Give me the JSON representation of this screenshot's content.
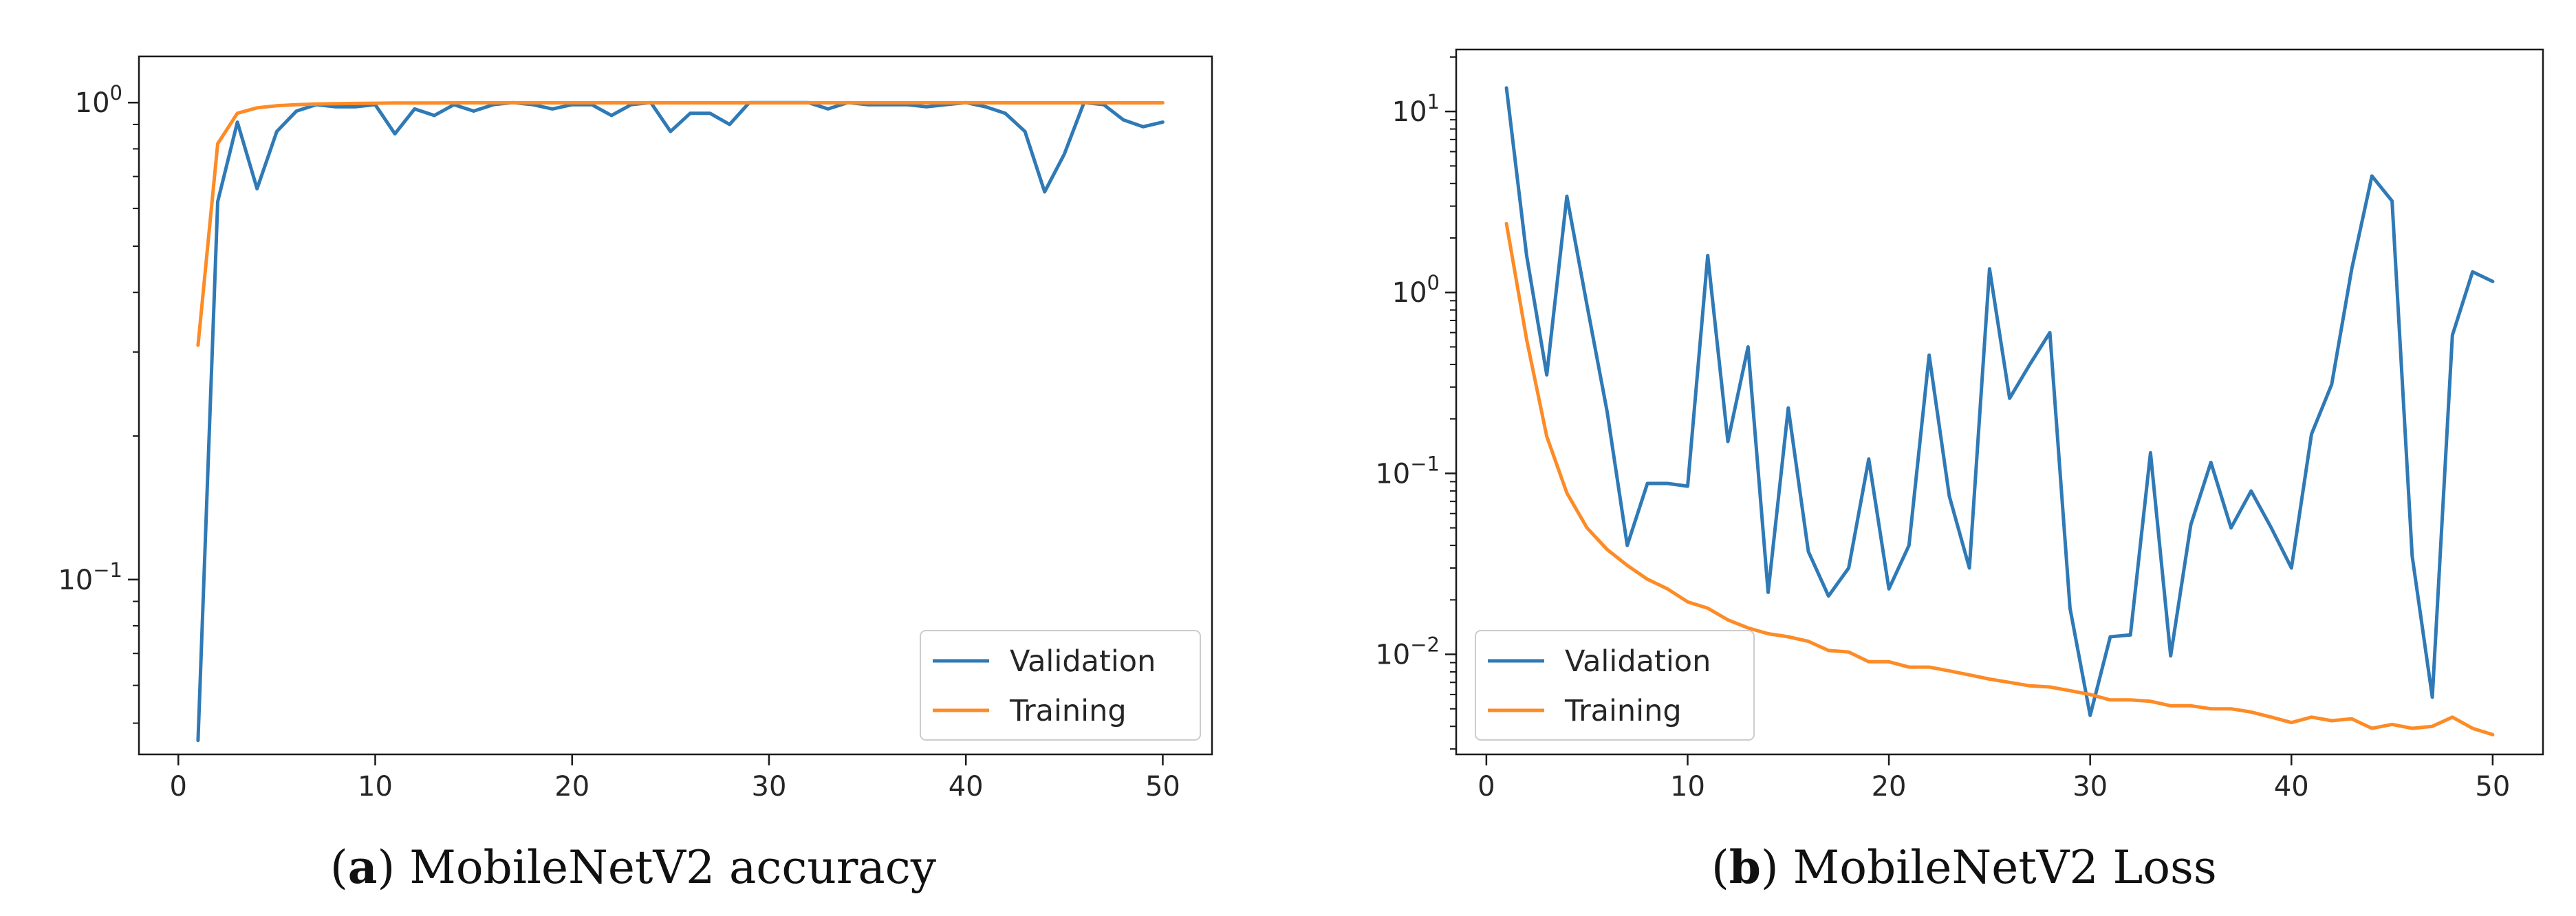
{
  "figure": {
    "captions": [
      {
        "open": "(",
        "letter": "a",
        "close": ")",
        "text": " MobileNetV2 accuracy"
      },
      {
        "open": "(",
        "letter": "b",
        "close": ")",
        "text": " MobileNetV2 Loss"
      }
    ]
  },
  "colors": {
    "validation": "#2f7ab6",
    "training": "#fd8b26",
    "axes": "#1a1a1a",
    "text": "#262626"
  },
  "chart_data": [
    {
      "type": "line",
      "title": "MobileNetV2 accuracy",
      "xlabel": "",
      "ylabel": "",
      "yscale": "log",
      "xlim": [
        -2,
        52.5
      ],
      "ylim": [
        0.043,
        1.25
      ],
      "xticks": [
        0,
        10,
        20,
        30,
        40,
        50
      ],
      "xtick_labels": [
        "0",
        "10",
        "20",
        "30",
        "40",
        "50"
      ],
      "yticks": [
        {
          "value": 1,
          "base": "10",
          "exp": "0"
        },
        {
          "value": 0.1,
          "base": "10",
          "exp": "−1"
        }
      ],
      "legend": {
        "position": "lower-right",
        "entries": [
          "Validation",
          "Training"
        ]
      },
      "x": [
        1,
        2,
        3,
        4,
        5,
        6,
        7,
        8,
        9,
        10,
        11,
        12,
        13,
        14,
        15,
        16,
        17,
        18,
        19,
        20,
        21,
        22,
        23,
        24,
        25,
        26,
        27,
        28,
        29,
        30,
        31,
        32,
        33,
        34,
        35,
        36,
        37,
        38,
        39,
        40,
        41,
        42,
        43,
        44,
        45,
        46,
        47,
        48,
        49,
        50
      ],
      "series": [
        {
          "name": "Validation",
          "values": [
            0.046,
            0.62,
            0.91,
            0.66,
            0.87,
            0.96,
            0.99,
            0.98,
            0.98,
            0.99,
            0.86,
            0.97,
            0.94,
            0.99,
            0.96,
            0.99,
            1.0,
            0.99,
            0.97,
            0.99,
            0.99,
            0.94,
            0.99,
            1.0,
            0.87,
            0.95,
            0.95,
            0.9,
            1.0,
            1.0,
            1.0,
            1.0,
            0.97,
            1.0,
            0.99,
            0.99,
            0.99,
            0.98,
            0.99,
            1.0,
            0.98,
            0.95,
            0.87,
            0.65,
            0.78,
            1.0,
            0.99,
            0.92,
            0.89,
            0.91
          ]
        },
        {
          "name": "Training",
          "values": [
            0.31,
            0.82,
            0.95,
            0.975,
            0.985,
            0.99,
            0.993,
            0.995,
            0.996,
            0.997,
            0.998,
            0.998,
            0.998,
            0.999,
            0.999,
            0.999,
            0.999,
            0.999,
            0.999,
            0.999,
            0.999,
            0.999,
            0.999,
            0.999,
            0.999,
            0.999,
            0.999,
            0.999,
            0.999,
            0.999,
            0.999,
            0.999,
            0.999,
            0.999,
            0.999,
            0.999,
            0.999,
            0.999,
            0.999,
            0.999,
            0.999,
            0.999,
            0.999,
            0.999,
            0.999,
            0.999,
            0.999,
            0.999,
            0.999,
            0.999
          ]
        }
      ]
    },
    {
      "type": "line",
      "title": "MobileNetV2 Loss",
      "xlabel": "",
      "ylabel": "",
      "yscale": "log",
      "xlim": [
        -1.5,
        52.5
      ],
      "ylim": [
        0.0028,
        22
      ],
      "xticks": [
        0,
        10,
        20,
        30,
        40,
        50
      ],
      "xtick_labels": [
        "0",
        "10",
        "20",
        "30",
        "40",
        "50"
      ],
      "yticks": [
        {
          "value": 10,
          "base": "10",
          "exp": "1"
        },
        {
          "value": 1,
          "base": "10",
          "exp": "0"
        },
        {
          "value": 0.1,
          "base": "10",
          "exp": "−1"
        },
        {
          "value": 0.01,
          "base": "10",
          "exp": "−2"
        }
      ],
      "legend": {
        "position": "lower-left",
        "entries": [
          "Validation",
          "Training"
        ]
      },
      "x": [
        1,
        2,
        3,
        4,
        5,
        6,
        7,
        8,
        9,
        10,
        11,
        12,
        13,
        14,
        15,
        16,
        17,
        18,
        19,
        20,
        21,
        22,
        23,
        24,
        25,
        26,
        27,
        28,
        29,
        30,
        31,
        32,
        33,
        34,
        35,
        36,
        37,
        38,
        39,
        40,
        41,
        42,
        43,
        44,
        45,
        46,
        47,
        48,
        49,
        50
      ],
      "series": [
        {
          "name": "Validation",
          "values": [
            13.5,
            1.6,
            0.35,
            3.4,
            0.85,
            0.22,
            0.04,
            0.088,
            0.088,
            0.085,
            1.6,
            0.15,
            0.5,
            0.022,
            0.23,
            0.037,
            0.021,
            0.03,
            0.12,
            0.023,
            0.04,
            0.45,
            0.075,
            0.03,
            1.35,
            0.26,
            0.4,
            0.6,
            0.018,
            0.0046,
            0.0125,
            0.0128,
            0.13,
            0.0098,
            0.052,
            0.115,
            0.05,
            0.08,
            0.05,
            0.03,
            0.165,
            0.31,
            1.35,
            4.4,
            3.2,
            0.035,
            0.0058,
            0.58,
            1.3,
            1.15
          ]
        },
        {
          "name": "Training",
          "values": [
            2.4,
            0.55,
            0.16,
            0.078,
            0.05,
            0.038,
            0.031,
            0.026,
            0.023,
            0.0195,
            0.018,
            0.0155,
            0.014,
            0.013,
            0.0125,
            0.0118,
            0.0105,
            0.0103,
            0.0091,
            0.0091,
            0.0085,
            0.0085,
            0.0081,
            0.0077,
            0.0073,
            0.007,
            0.0067,
            0.0066,
            0.0063,
            0.006,
            0.0056,
            0.0056,
            0.0055,
            0.0052,
            0.0052,
            0.005,
            0.005,
            0.0048,
            0.0045,
            0.0042,
            0.0045,
            0.0043,
            0.0044,
            0.0039,
            0.0041,
            0.0039,
            0.004,
            0.0045,
            0.0039,
            0.0036
          ]
        }
      ]
    }
  ]
}
